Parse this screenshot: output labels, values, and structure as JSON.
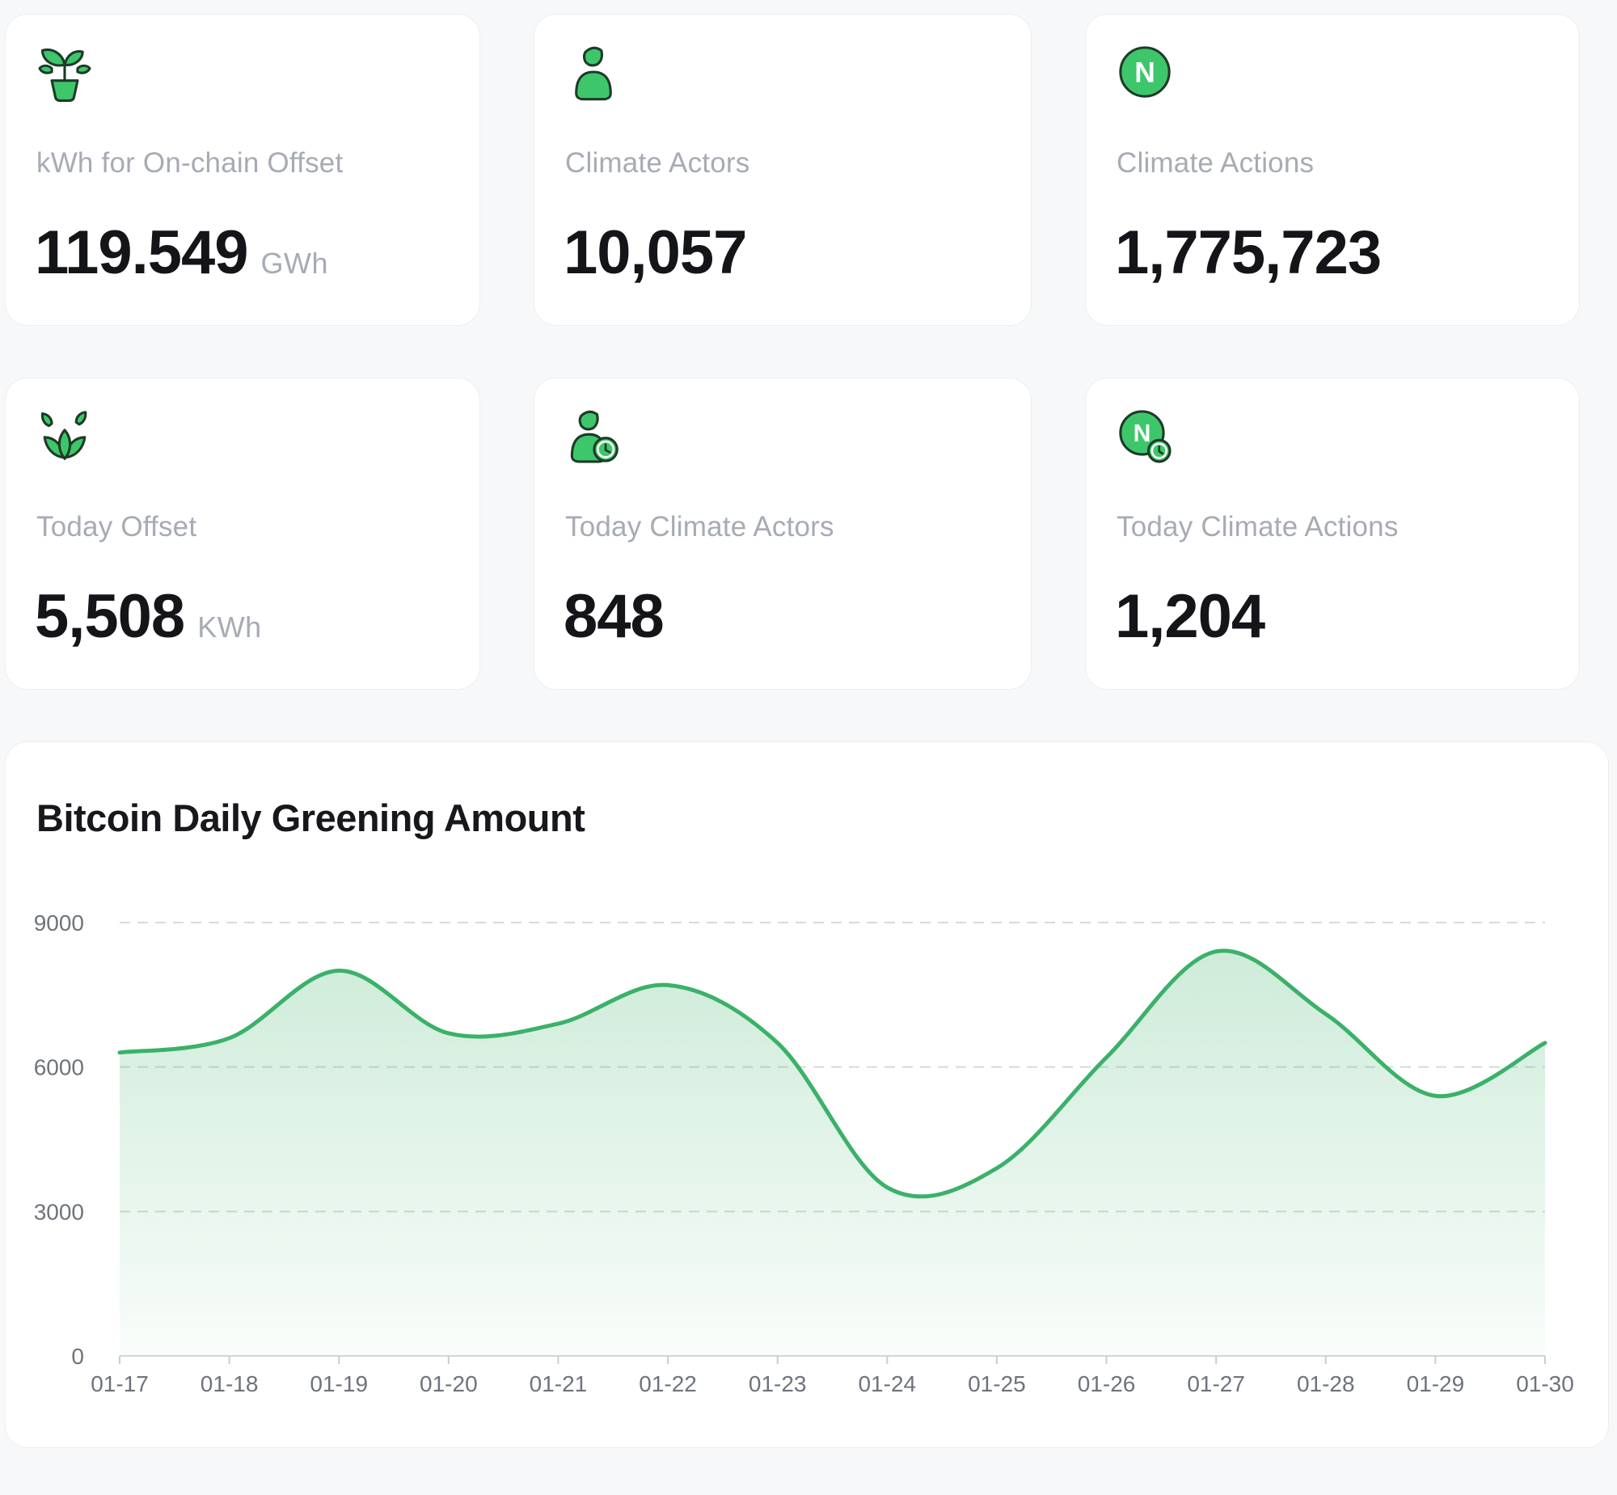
{
  "stats": [
    {
      "label": "kWh for On-chain Offset",
      "value": "119.549",
      "unit": "GWh",
      "icon": "potted-plant-icon"
    },
    {
      "label": "Climate Actors",
      "value": "10,057",
      "unit": "",
      "icon": "person-icon"
    },
    {
      "label": "Climate Actions",
      "value": "1,775,723",
      "unit": "",
      "icon": "n-circle-icon"
    },
    {
      "label": "Today Offset",
      "value": "5,508",
      "unit": "KWh",
      "icon": "leaves-icon"
    },
    {
      "label": "Today Climate Actors",
      "value": "848",
      "unit": "",
      "icon": "person-clock-icon"
    },
    {
      "label": "Today Climate Actions",
      "value": "1,204",
      "unit": "",
      "icon": "n-clock-icon"
    }
  ],
  "colors": {
    "accent_green": "#3ec76a",
    "icon_outline": "#1d3b28",
    "line_green": "#3bb169",
    "label_gray": "#a6abb4",
    "value_black": "#141519",
    "axis_gray": "#6e737b",
    "grid_gray": "#d7d9db",
    "card_border": "#ededee",
    "page_bg": "#f7f8f9"
  },
  "chart_data": {
    "type": "area",
    "title": "Bitcoin Daily Greening Amount",
    "categories": [
      "01-17",
      "01-18",
      "01-19",
      "01-20",
      "01-21",
      "01-22",
      "01-23",
      "01-24",
      "01-25",
      "01-26",
      "01-27",
      "01-28",
      "01-29",
      "01-30"
    ],
    "values": [
      6300,
      6600,
      8000,
      6700,
      6900,
      7700,
      6500,
      3500,
      3900,
      6200,
      8400,
      7100,
      5400,
      6500
    ],
    "xlabel": "",
    "ylabel": "",
    "ylim": [
      0,
      9000
    ],
    "yticks": [
      0,
      3000,
      6000,
      9000
    ],
    "grid": "dashed-horizontal",
    "legend": "none",
    "smooth": true,
    "line_color": "#3bb169",
    "fill_from": "rgba(62,178,106,0.26)",
    "fill_to": "rgba(62,178,106,0.03)"
  }
}
